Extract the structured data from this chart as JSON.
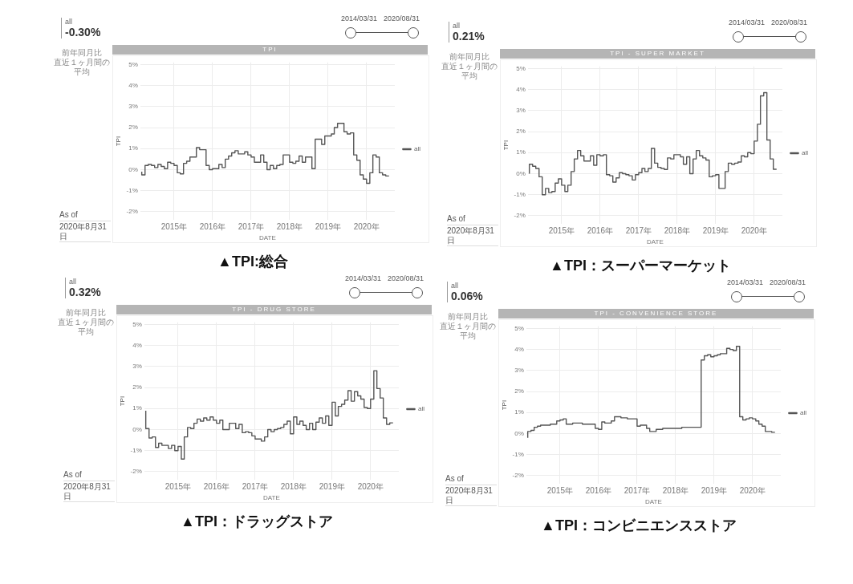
{
  "chart_data": [
    {
      "type": "step",
      "title": "TPI",
      "xlabel": "DATE",
      "ylabel": "TPI",
      "legend": "right",
      "grid": true,
      "marker": "none",
      "line_style": "solid",
      "annotations": [
        "all",
        "-0.30%",
        "前年同月比",
        "直近１ヶ月間の平均",
        "As of",
        "2020年8月31日",
        "2014/03/31",
        "2020/08/31",
        "▲TPI:総合"
      ],
      "xlim": [
        "2014-02-15",
        "2020-09-25"
      ],
      "ylim": [
        -2.4,
        5.1
      ],
      "xticks": [
        {
          "value": "2015-01",
          "label": "2015年"
        },
        {
          "value": "2016-01",
          "label": "2016年"
        },
        {
          "value": "2017-01",
          "label": "2017年"
        },
        {
          "value": "2018-01",
          "label": "2018年"
        },
        {
          "value": "2019-01",
          "label": "2019年"
        },
        {
          "value": "2020-01",
          "label": "2020年"
        }
      ],
      "yticks": [
        {
          "value": -2,
          "label": "-2%"
        },
        {
          "value": -1,
          "label": "-1%"
        },
        {
          "value": 0,
          "label": "0%"
        },
        {
          "value": 1,
          "label": "1%"
        },
        {
          "value": 2,
          "label": "2%"
        },
        {
          "value": 3,
          "label": "3%"
        },
        {
          "value": 4,
          "label": "4%"
        },
        {
          "value": 5,
          "label": "5%"
        }
      ],
      "x": [
        "2014-03",
        "2014-04",
        "2014-05",
        "2014-06",
        "2014-07",
        "2014-08",
        "2014-09",
        "2014-10",
        "2014-11",
        "2014-12",
        "2015-01",
        "2015-02",
        "2015-03",
        "2015-04",
        "2015-05",
        "2015-06",
        "2015-07",
        "2015-08",
        "2015-09",
        "2015-10",
        "2015-11",
        "2015-12",
        "2016-01",
        "2016-02",
        "2016-03",
        "2016-04",
        "2016-05",
        "2016-06",
        "2016-07",
        "2016-08",
        "2016-09",
        "2016-10",
        "2016-11",
        "2016-12",
        "2017-01",
        "2017-02",
        "2017-03",
        "2017-04",
        "2017-05",
        "2017-06",
        "2017-07",
        "2017-08",
        "2017-09",
        "2017-10",
        "2017-11",
        "2017-12",
        "2018-01",
        "2018-02",
        "2018-03",
        "2018-04",
        "2018-05",
        "2018-06",
        "2018-07",
        "2018-08",
        "2018-09",
        "2018-10",
        "2018-11",
        "2018-12",
        "2019-01",
        "2019-02",
        "2019-03",
        "2019-04",
        "2019-05",
        "2019-06",
        "2019-07",
        "2019-08",
        "2019-09",
        "2019-10",
        "2019-11",
        "2019-12",
        "2020-01",
        "2020-02",
        "2020-03",
        "2020-04",
        "2020-05",
        "2020-06",
        "2020-07",
        "2020-08"
      ],
      "series": [
        {
          "name": "all",
          "color": "#555555",
          "values": [
            -0.1,
            -0.25,
            0.2,
            0.25,
            0.2,
            0.1,
            0.25,
            0.15,
            0.05,
            0.35,
            0.3,
            0.2,
            -0.15,
            -0.2,
            0.3,
            0.4,
            0.6,
            0.6,
            1.05,
            0.95,
            0.95,
            0.2,
            0.0,
            0.05,
            0.05,
            0.25,
            0.1,
            0.5,
            0.65,
            0.8,
            0.9,
            0.75,
            0.75,
            0.85,
            0.7,
            0.6,
            0.35,
            0.35,
            0.7,
            0.35,
            0.0,
            0.2,
            0.05,
            0.2,
            0.25,
            0.7,
            0.7,
            0.35,
            0.3,
            0.4,
            0.65,
            0.35,
            0.6,
            0.6,
            0.05,
            1.45,
            1.45,
            1.2,
            1.6,
            1.6,
            1.7,
            2.0,
            2.2,
            2.2,
            1.8,
            1.7,
            1.75,
            0.7,
            0.45,
            -0.25,
            -0.45,
            -0.65,
            -0.15,
            0.7,
            0.6,
            -0.15,
            -0.25,
            -0.3
          ]
        }
      ]
    },
    {
      "type": "step",
      "title": "TPI - SUPER MARKET",
      "xlabel": "DATE",
      "ylabel": "TPI",
      "legend": "right",
      "grid": true,
      "marker": "none",
      "line_style": "solid",
      "annotations": [
        "all",
        "0.21%",
        "前年同月比",
        "直近１ヶ月間の平均",
        "As of",
        "2020年8月31日",
        "2014/03/31",
        "2020/08/31",
        "▲TPI：スーパーマーケット"
      ],
      "xlim": [
        "2014-02-15",
        "2020-09-25"
      ],
      "ylim": [
        -2.4,
        5.1
      ],
      "xticks": [
        {
          "value": "2015-01",
          "label": "2015年"
        },
        {
          "value": "2016-01",
          "label": "2016年"
        },
        {
          "value": "2017-01",
          "label": "2017年"
        },
        {
          "value": "2018-01",
          "label": "2018年"
        },
        {
          "value": "2019-01",
          "label": "2019年"
        },
        {
          "value": "2020-01",
          "label": "2020年"
        }
      ],
      "yticks": [
        {
          "value": -2,
          "label": "-2%"
        },
        {
          "value": -1,
          "label": "-1%"
        },
        {
          "value": 0,
          "label": "0%"
        },
        {
          "value": 1,
          "label": "1%"
        },
        {
          "value": 2,
          "label": "2%"
        },
        {
          "value": 3,
          "label": "3%"
        },
        {
          "value": 4,
          "label": "4%"
        },
        {
          "value": 5,
          "label": "5%"
        }
      ],
      "x": [
        "2014-03",
        "2014-04",
        "2014-05",
        "2014-06",
        "2014-07",
        "2014-08",
        "2014-09",
        "2014-10",
        "2014-11",
        "2014-12",
        "2015-01",
        "2015-02",
        "2015-03",
        "2015-04",
        "2015-05",
        "2015-06",
        "2015-07",
        "2015-08",
        "2015-09",
        "2015-10",
        "2015-11",
        "2015-12",
        "2016-01",
        "2016-02",
        "2016-03",
        "2016-04",
        "2016-05",
        "2016-06",
        "2016-07",
        "2016-08",
        "2016-09",
        "2016-10",
        "2016-11",
        "2016-12",
        "2017-01",
        "2017-02",
        "2017-03",
        "2017-04",
        "2017-05",
        "2017-06",
        "2017-07",
        "2017-08",
        "2017-09",
        "2017-10",
        "2017-11",
        "2017-12",
        "2018-01",
        "2018-02",
        "2018-03",
        "2018-04",
        "2018-05",
        "2018-06",
        "2018-07",
        "2018-08",
        "2018-09",
        "2018-10",
        "2018-11",
        "2018-12",
        "2019-01",
        "2019-02",
        "2019-03",
        "2019-04",
        "2019-05",
        "2019-06",
        "2019-07",
        "2019-08",
        "2019-09",
        "2019-10",
        "2019-11",
        "2019-12",
        "2020-01",
        "2020-02",
        "2020-03",
        "2020-04",
        "2020-05",
        "2020-06",
        "2020-07",
        "2020-08"
      ],
      "series": [
        {
          "name": "all",
          "color": "#555555",
          "values": [
            0,
            0.45,
            0.35,
            0.25,
            -0.15,
            -1.0,
            -0.7,
            -0.9,
            -0.85,
            -0.45,
            -0.25,
            -0.55,
            -0.85,
            -0.55,
            0.1,
            0.7,
            1.1,
            0.85,
            0.6,
            0.6,
            0.85,
            0.4,
            0.9,
            0.85,
            0.9,
            -0.05,
            -0.1,
            -0.4,
            -0.2,
            0.05,
            0.0,
            -0.05,
            -0.1,
            -0.3,
            -0.05,
            0.05,
            0.25,
            0.1,
            0.25,
            1.2,
            0.5,
            0.3,
            0.25,
            0.2,
            0.75,
            0.7,
            0.9,
            0.9,
            0.8,
            0.45,
            0.8,
            0.0,
            0.7,
            1.1,
            0.85,
            0.75,
            0.65,
            -0.15,
            -0.1,
            -0.05,
            -0.7,
            -0.7,
            0.1,
            0.5,
            0.45,
            0.5,
            0.55,
            0.85,
            0.8,
            1.0,
            0.95,
            1.55,
            2.35,
            3.7,
            3.85,
            1.6,
            0.7,
            0.21
          ]
        }
      ]
    },
    {
      "type": "step",
      "title": "TPI - DRUG STORE",
      "xlabel": "DATE",
      "ylabel": "TPI",
      "legend": "right",
      "grid": true,
      "marker": "none",
      "line_style": "solid",
      "annotations": [
        "all",
        "0.32%",
        "前年同月比",
        "直近１ヶ月間の平均",
        "As of",
        "2020年8月31日",
        "2014/03/31",
        "2020/08/31",
        "▲TPI：ドラッグストア"
      ],
      "xlim": [
        "2014-02-15",
        "2020-09-25"
      ],
      "ylim": [
        -2.4,
        5.1
      ],
      "xticks": [
        {
          "value": "2015-01",
          "label": "2015年"
        },
        {
          "value": "2016-01",
          "label": "2016年"
        },
        {
          "value": "2017-01",
          "label": "2017年"
        },
        {
          "value": "2018-01",
          "label": "2018年"
        },
        {
          "value": "2019-01",
          "label": "2019年"
        },
        {
          "value": "2020-01",
          "label": "2020年"
        }
      ],
      "yticks": [
        {
          "value": -2,
          "label": "-2%"
        },
        {
          "value": -1,
          "label": "-1%"
        },
        {
          "value": 0,
          "label": "0%"
        },
        {
          "value": 1,
          "label": "1%"
        },
        {
          "value": 2,
          "label": "2%"
        },
        {
          "value": 3,
          "label": "3%"
        },
        {
          "value": 4,
          "label": "4%"
        },
        {
          "value": 5,
          "label": "5%"
        }
      ],
      "x": [
        "2014-03",
        "2014-04",
        "2014-05",
        "2014-06",
        "2014-07",
        "2014-08",
        "2014-09",
        "2014-10",
        "2014-11",
        "2014-12",
        "2015-01",
        "2015-02",
        "2015-03",
        "2015-04",
        "2015-05",
        "2015-06",
        "2015-07",
        "2015-08",
        "2015-09",
        "2015-10",
        "2015-11",
        "2015-12",
        "2016-01",
        "2016-02",
        "2016-03",
        "2016-04",
        "2016-05",
        "2016-06",
        "2016-07",
        "2016-08",
        "2016-09",
        "2016-10",
        "2016-11",
        "2016-12",
        "2017-01",
        "2017-02",
        "2017-03",
        "2017-04",
        "2017-05",
        "2017-06",
        "2017-07",
        "2017-08",
        "2017-09",
        "2017-10",
        "2017-11",
        "2017-12",
        "2018-01",
        "2018-02",
        "2018-03",
        "2018-04",
        "2018-05",
        "2018-06",
        "2018-07",
        "2018-08",
        "2018-09",
        "2018-10",
        "2018-11",
        "2018-12",
        "2019-01",
        "2019-02",
        "2019-03",
        "2019-04",
        "2019-05",
        "2019-06",
        "2019-07",
        "2019-08",
        "2019-09",
        "2019-10",
        "2019-11",
        "2019-12",
        "2020-01",
        "2020-02",
        "2020-03",
        "2020-04",
        "2020-05",
        "2020-06",
        "2020-07",
        "2020-08"
      ],
      "series": [
        {
          "name": "all",
          "color": "#555555",
          "values": [
            0.9,
            0.05,
            -0.4,
            -0.35,
            -0.85,
            -0.65,
            -0.75,
            -0.75,
            -0.9,
            -0.75,
            -1.0,
            -0.8,
            -1.4,
            -0.35,
            0.1,
            0.05,
            0.3,
            0.5,
            0.4,
            0.55,
            0.45,
            0.6,
            0.45,
            0.3,
            0.45,
            0.0,
            0.0,
            0.3,
            0.3,
            0.05,
            0.25,
            -0.15,
            -0.1,
            -0.15,
            -0.3,
            -0.45,
            -0.45,
            -0.55,
            -0.35,
            0.0,
            -0.1,
            0.0,
            0.05,
            0.1,
            0.25,
            0.4,
            -0.2,
            0.6,
            0.25,
            0.4,
            0.2,
            0.0,
            0.3,
            0.0,
            0.35,
            0.55,
            0.3,
            0.65,
            0.2,
            1.3,
            0.65,
            1.1,
            1.2,
            1.4,
            1.85,
            1.35,
            1.8,
            1.6,
            1.45,
            1.05,
            1.0,
            1.45,
            2.8,
            1.95,
            1.5,
            0.55,
            0.25,
            0.32
          ]
        }
      ]
    },
    {
      "type": "step",
      "title": "TPI - CONVENIENCE STORE",
      "xlabel": "DATE",
      "ylabel": "TPI",
      "legend": "right",
      "grid": true,
      "marker": "none",
      "line_style": "solid",
      "annotations": [
        "all",
        "0.06%",
        "前年同月比",
        "直近１ヶ月間の平均",
        "As of",
        "2020年8月31日",
        "2014/03/31",
        "2020/08/31",
        "▲TPI：コンビニエンスストア"
      ],
      "xlim": [
        "2014-02-15",
        "2020-09-25"
      ],
      "ylim": [
        -2.4,
        5.1
      ],
      "xticks": [
        {
          "value": "2015-01",
          "label": "2015年"
        },
        {
          "value": "2016-01",
          "label": "2016年"
        },
        {
          "value": "2017-01",
          "label": "2017年"
        },
        {
          "value": "2018-01",
          "label": "2018年"
        },
        {
          "value": "2019-01",
          "label": "2019年"
        },
        {
          "value": "2020-01",
          "label": "2020年"
        }
      ],
      "yticks": [
        {
          "value": -2,
          "label": "-2%"
        },
        {
          "value": -1,
          "label": "-1%"
        },
        {
          "value": 0,
          "label": "0%"
        },
        {
          "value": 1,
          "label": "1%"
        },
        {
          "value": 2,
          "label": "2%"
        },
        {
          "value": 3,
          "label": "3%"
        },
        {
          "value": 4,
          "label": "4%"
        },
        {
          "value": 5,
          "label": "5%"
        }
      ],
      "x": [
        "2014-03",
        "2014-04",
        "2014-05",
        "2014-06",
        "2014-07",
        "2014-08",
        "2014-09",
        "2014-10",
        "2014-11",
        "2014-12",
        "2015-01",
        "2015-02",
        "2015-03",
        "2015-04",
        "2015-05",
        "2015-06",
        "2015-07",
        "2015-08",
        "2015-09",
        "2015-10",
        "2015-11",
        "2015-12",
        "2016-01",
        "2016-02",
        "2016-03",
        "2016-04",
        "2016-05",
        "2016-06",
        "2016-07",
        "2016-08",
        "2016-09",
        "2016-10",
        "2016-11",
        "2016-12",
        "2017-01",
        "2017-02",
        "2017-03",
        "2017-04",
        "2017-05",
        "2017-06",
        "2017-07",
        "2017-08",
        "2017-09",
        "2017-10",
        "2017-11",
        "2017-12",
        "2018-01",
        "2018-02",
        "2018-03",
        "2018-04",
        "2018-05",
        "2018-06",
        "2018-07",
        "2018-08",
        "2018-09",
        "2018-10",
        "2018-11",
        "2018-12",
        "2019-01",
        "2019-02",
        "2019-03",
        "2019-04",
        "2019-05",
        "2019-06",
        "2019-07",
        "2019-08",
        "2019-09",
        "2019-10",
        "2019-11",
        "2019-12",
        "2020-01",
        "2020-02",
        "2020-03",
        "2020-04",
        "2020-05",
        "2020-06",
        "2020-07",
        "2020-08"
      ],
      "series": [
        {
          "name": "all",
          "color": "#555555",
          "values": [
            -0.2,
            0.1,
            0.15,
            0.3,
            0.35,
            0.4,
            0.4,
            0.4,
            0.45,
            0.45,
            0.6,
            0.65,
            0.7,
            0.45,
            0.45,
            0.5,
            0.5,
            0.5,
            0.45,
            0.45,
            0.45,
            0.45,
            0.25,
            0.2,
            0.55,
            0.5,
            0.5,
            0.6,
            0.8,
            0.8,
            0.75,
            0.75,
            0.7,
            0.7,
            0.7,
            0.35,
            0.4,
            0.4,
            0.25,
            0.1,
            0.1,
            0.2,
            0.2,
            0.25,
            0.25,
            0.25,
            0.25,
            0.25,
            0.25,
            0.3,
            0.3,
            0.3,
            0.3,
            0.3,
            0.3,
            3.5,
            3.7,
            3.75,
            3.65,
            3.7,
            3.75,
            3.8,
            3.8,
            4.05,
            4.0,
            3.95,
            4.15,
            0.8,
            0.65,
            0.7,
            0.75,
            0.7,
            0.6,
            0.45,
            0.35,
            0.1,
            0.1,
            0.06
          ]
        }
      ]
    }
  ]
}
